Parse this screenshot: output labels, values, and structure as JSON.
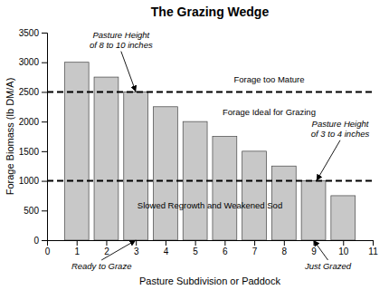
{
  "chart_data": {
    "type": "bar",
    "title": "The Grazing Wedge",
    "x_label": "Pasture Subdivision or Paddock",
    "y_label": "Forage Biomass (lb DM/A)",
    "x": [
      1,
      2,
      3,
      4,
      5,
      6,
      7,
      8,
      9,
      10
    ],
    "values": [
      3000,
      2750,
      2500,
      2250,
      2000,
      1750,
      1500,
      1250,
      1000,
      750
    ],
    "color": "#c8c8c8",
    "xlim": [
      0,
      11
    ],
    "ylim": [
      0,
      3500
    ],
    "xticks": [
      0,
      1,
      2,
      3,
      4,
      5,
      6,
      7,
      8,
      9,
      10,
      11
    ],
    "yticks": [
      0,
      500,
      1000,
      1500,
      2000,
      2500,
      3000,
      3500
    ],
    "grid": false,
    "hlines": [
      2500,
      1000
    ],
    "annotations": [
      {
        "text": "Forage too Mature",
        "x": 7.5,
        "y": 2700
      },
      {
        "text": "Forage Ideal for Grazing",
        "x": 7.5,
        "y": 2150
      },
      {
        "text": "Slowed Regrowth and Weakened Sod",
        "x": 5.5,
        "y": 580
      },
      {
        "text": "Pasture Height\nof 8 to 10 inches",
        "x": 2.5,
        "y": 3200,
        "arrow_x": 3.0,
        "arrow_y": 2500
      },
      {
        "text": "Pasture Height\nof 3 to 4 inches",
        "x": 9.9,
        "y": 1700,
        "arrow_x": 9.1,
        "arrow_y": 1000
      },
      {
        "text": "Ready to Graze",
        "arrow_x": 3.0,
        "arrow_y": 0
      },
      {
        "text": "Just Grazed",
        "arrow_x": 9.0,
        "arrow_y": 0
      }
    ]
  }
}
